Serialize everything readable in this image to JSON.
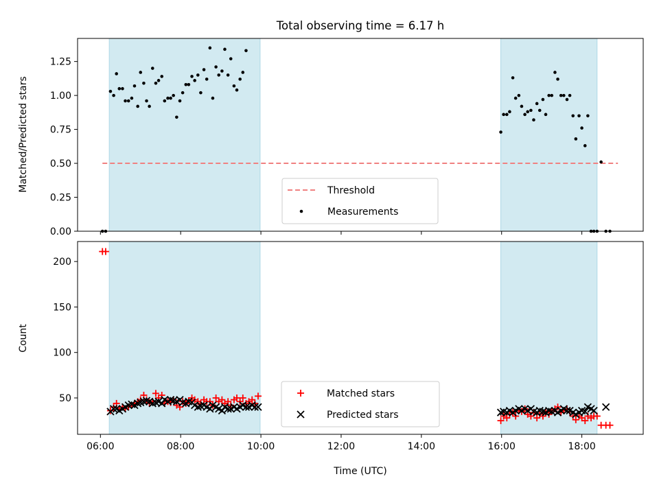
{
  "chart_data": [
    {
      "type": "scatter",
      "title": "Total observing time = 6.17 h",
      "xlabel": "",
      "ylabel": "Matched/Predicted stars",
      "xlim": [
        5.43,
        19.53
      ],
      "ylim": [
        0.0,
        1.42
      ],
      "yticks": [
        0.0,
        0.25,
        0.5,
        0.75,
        1.0,
        1.25
      ],
      "ytick_labels": [
        "0.00",
        "0.25",
        "0.50",
        "0.75",
        "1.00",
        "1.25"
      ],
      "x_unit": "hours (UTC)",
      "shaded_intervals": [
        [
          6.22,
          9.98
        ],
        [
          15.98,
          18.38
        ]
      ],
      "threshold": {
        "name": "Threshold",
        "y": 0.5,
        "x_range": [
          6.05,
          18.9
        ],
        "color": "#f08080"
      },
      "series": [
        {
          "name": "Measurements",
          "color": "#000000",
          "points": [
            [
              6.05,
              0.0
            ],
            [
              6.13,
              0.0
            ],
            [
              6.25,
              1.03
            ],
            [
              6.33,
              1.0
            ],
            [
              6.4,
              1.16
            ],
            [
              6.47,
              1.05
            ],
            [
              6.55,
              1.05
            ],
            [
              6.62,
              0.96
            ],
            [
              6.7,
              0.96
            ],
            [
              6.78,
              0.98
            ],
            [
              6.85,
              1.07
            ],
            [
              6.93,
              0.92
            ],
            [
              7.0,
              1.17
            ],
            [
              7.08,
              1.09
            ],
            [
              7.15,
              0.96
            ],
            [
              7.22,
              0.92
            ],
            [
              7.3,
              1.2
            ],
            [
              7.38,
              1.09
            ],
            [
              7.45,
              1.11
            ],
            [
              7.53,
              1.14
            ],
            [
              7.6,
              0.96
            ],
            [
              7.68,
              0.98
            ],
            [
              7.75,
              0.98
            ],
            [
              7.82,
              1.0
            ],
            [
              7.9,
              0.84
            ],
            [
              7.98,
              0.96
            ],
            [
              8.05,
              1.02
            ],
            [
              8.13,
              1.08
            ],
            [
              8.2,
              1.08
            ],
            [
              8.28,
              1.14
            ],
            [
              8.35,
              1.11
            ],
            [
              8.43,
              1.15
            ],
            [
              8.5,
              1.02
            ],
            [
              8.58,
              1.19
            ],
            [
              8.65,
              1.12
            ],
            [
              8.73,
              1.35
            ],
            [
              8.8,
              0.98
            ],
            [
              8.88,
              1.21
            ],
            [
              8.95,
              1.15
            ],
            [
              9.03,
              1.18
            ],
            [
              9.1,
              1.34
            ],
            [
              9.18,
              1.15
            ],
            [
              9.25,
              1.27
            ],
            [
              9.33,
              1.07
            ],
            [
              9.4,
              1.04
            ],
            [
              9.48,
              1.12
            ],
            [
              9.55,
              1.17
            ],
            [
              9.63,
              1.33
            ],
            [
              15.98,
              0.73
            ],
            [
              16.05,
              0.86
            ],
            [
              16.13,
              0.86
            ],
            [
              16.2,
              0.88
            ],
            [
              16.28,
              1.13
            ],
            [
              16.35,
              0.98
            ],
            [
              16.43,
              1.0
            ],
            [
              16.5,
              0.92
            ],
            [
              16.58,
              0.86
            ],
            [
              16.65,
              0.88
            ],
            [
              16.73,
              0.89
            ],
            [
              16.8,
              0.82
            ],
            [
              16.88,
              0.94
            ],
            [
              16.95,
              0.89
            ],
            [
              17.03,
              0.97
            ],
            [
              17.1,
              0.86
            ],
            [
              17.18,
              1.0
            ],
            [
              17.25,
              1.0
            ],
            [
              17.33,
              1.17
            ],
            [
              17.4,
              1.12
            ],
            [
              17.48,
              1.0
            ],
            [
              17.55,
              1.0
            ],
            [
              17.63,
              0.97
            ],
            [
              17.7,
              1.0
            ],
            [
              17.78,
              0.85
            ],
            [
              17.85,
              0.68
            ],
            [
              17.93,
              0.85
            ],
            [
              18.0,
              0.76
            ],
            [
              18.08,
              0.63
            ],
            [
              18.15,
              0.85
            ],
            [
              18.23,
              0.0
            ],
            [
              18.3,
              0.0
            ],
            [
              18.38,
              0.0
            ],
            [
              18.48,
              0.51
            ],
            [
              18.6,
              0.0
            ],
            [
              18.7,
              0.0
            ]
          ]
        }
      ],
      "legend": {
        "placement": "lower-center",
        "entries": [
          "Threshold",
          "Measurements"
        ]
      }
    },
    {
      "type": "scatter",
      "title": "",
      "xlabel": "Time (UTC)",
      "ylabel": "Count",
      "xlim": [
        5.43,
        19.53
      ],
      "ylim": [
        10,
        222
      ],
      "yticks": [
        50,
        100,
        150,
        200
      ],
      "ytick_labels": [
        "50",
        "100",
        "150",
        "200"
      ],
      "xticks": [
        6,
        8,
        10,
        12,
        14,
        16,
        18
      ],
      "xtick_labels": [
        "06:00",
        "08:00",
        "10:00",
        "12:00",
        "14:00",
        "16:00",
        "18:00"
      ],
      "shaded_intervals": [
        [
          6.22,
          9.98
        ],
        [
          15.98,
          18.38
        ]
      ],
      "series": [
        {
          "name": "Matched stars",
          "marker": "+",
          "color": "#ff0000",
          "points": [
            [
              6.05,
              211
            ],
            [
              6.13,
              211
            ],
            [
              6.25,
              36
            ],
            [
              6.33,
              40
            ],
            [
              6.4,
              44
            ],
            [
              6.47,
              38
            ],
            [
              6.55,
              40
            ],
            [
              6.62,
              38
            ],
            [
              6.7,
              40
            ],
            [
              6.78,
              42
            ],
            [
              6.85,
              44
            ],
            [
              6.93,
              46
            ],
            [
              7.0,
              48
            ],
            [
              7.08,
              53
            ],
            [
              7.15,
              48
            ],
            [
              7.22,
              44
            ],
            [
              7.3,
              46
            ],
            [
              7.38,
              55
            ],
            [
              7.45,
              50
            ],
            [
              7.53,
              53
            ],
            [
              7.6,
              44
            ],
            [
              7.68,
              46
            ],
            [
              7.75,
              45
            ],
            [
              7.82,
              48
            ],
            [
              7.9,
              42
            ],
            [
              7.98,
              40
            ],
            [
              8.05,
              46
            ],
            [
              8.13,
              44
            ],
            [
              8.2,
              47
            ],
            [
              8.28,
              50
            ],
            [
              8.35,
              48
            ],
            [
              8.43,
              46
            ],
            [
              8.5,
              44
            ],
            [
              8.58,
              48
            ],
            [
              8.65,
              46
            ],
            [
              8.73,
              46
            ],
            [
              8.8,
              42
            ],
            [
              8.88,
              50
            ],
            [
              8.95,
              46
            ],
            [
              9.03,
              48
            ],
            [
              9.1,
              44
            ],
            [
              9.18,
              46
            ],
            [
              9.25,
              42
            ],
            [
              9.33,
              48
            ],
            [
              9.4,
              50
            ],
            [
              9.48,
              46
            ],
            [
              9.55,
              50
            ],
            [
              9.63,
              44
            ],
            [
              9.7,
              46
            ],
            [
              9.78,
              48
            ],
            [
              9.85,
              44
            ],
            [
              9.93,
              52
            ],
            [
              15.98,
              25
            ],
            [
              16.05,
              30
            ],
            [
              16.13,
              28
            ],
            [
              16.2,
              32
            ],
            [
              16.28,
              34
            ],
            [
              16.35,
              30
            ],
            [
              16.43,
              36
            ],
            [
              16.5,
              35
            ],
            [
              16.58,
              38
            ],
            [
              16.65,
              32
            ],
            [
              16.73,
              30
            ],
            [
              16.8,
              34
            ],
            [
              16.88,
              28
            ],
            [
              16.95,
              32
            ],
            [
              17.03,
              30
            ],
            [
              17.1,
              34
            ],
            [
              17.18,
              32
            ],
            [
              17.25,
              36
            ],
            [
              17.33,
              38
            ],
            [
              17.4,
              40
            ],
            [
              17.48,
              34
            ],
            [
              17.55,
              36
            ],
            [
              17.63,
              38
            ],
            [
              17.7,
              35
            ],
            [
              17.78,
              30
            ],
            [
              17.85,
              26
            ],
            [
              17.93,
              30
            ],
            [
              18.0,
              28
            ],
            [
              18.08,
              25
            ],
            [
              18.15,
              30
            ],
            [
              18.23,
              28
            ],
            [
              18.3,
              30
            ],
            [
              18.38,
              30
            ],
            [
              18.48,
              20
            ],
            [
              18.6,
              20
            ],
            [
              18.7,
              20
            ]
          ]
        },
        {
          "name": "Predicted stars",
          "marker": "x",
          "color": "#000000",
          "points": [
            [
              6.25,
              35
            ],
            [
              6.33,
              38
            ],
            [
              6.4,
              38
            ],
            [
              6.47,
              36
            ],
            [
              6.55,
              38
            ],
            [
              6.62,
              40
            ],
            [
              6.7,
              42
            ],
            [
              6.78,
              43
            ],
            [
              6.85,
              42
            ],
            [
              6.93,
              44
            ],
            [
              7.0,
              45
            ],
            [
              7.08,
              46
            ],
            [
              7.15,
              47
            ],
            [
              7.22,
              46
            ],
            [
              7.3,
              44
            ],
            [
              7.38,
              45
            ],
            [
              7.45,
              46
            ],
            [
              7.53,
              44
            ],
            [
              7.6,
              48
            ],
            [
              7.68,
              46
            ],
            [
              7.75,
              48
            ],
            [
              7.82,
              47
            ],
            [
              7.9,
              46
            ],
            [
              7.98,
              48
            ],
            [
              8.05,
              45
            ],
            [
              8.13,
              44
            ],
            [
              8.2,
              46
            ],
            [
              8.28,
              45
            ],
            [
              8.35,
              42
            ],
            [
              8.43,
              40
            ],
            [
              8.5,
              41
            ],
            [
              8.58,
              42
            ],
            [
              8.65,
              40
            ],
            [
              8.73,
              38
            ],
            [
              8.8,
              42
            ],
            [
              8.88,
              40
            ],
            [
              8.95,
              38
            ],
            [
              9.03,
              36
            ],
            [
              9.1,
              40
            ],
            [
              9.18,
              38
            ],
            [
              9.25,
              38
            ],
            [
              9.33,
              40
            ],
            [
              9.4,
              38
            ],
            [
              9.48,
              40
            ],
            [
              9.55,
              42
            ],
            [
              9.63,
              40
            ],
            [
              9.7,
              40
            ],
            [
              9.78,
              42
            ],
            [
              9.85,
              40
            ],
            [
              9.93,
              40
            ],
            [
              15.98,
              34
            ],
            [
              16.05,
              35
            ],
            [
              16.13,
              34
            ],
            [
              16.2,
              36
            ],
            [
              16.28,
              34
            ],
            [
              16.35,
              36
            ],
            [
              16.43,
              38
            ],
            [
              16.5,
              36
            ],
            [
              16.58,
              38
            ],
            [
              16.65,
              36
            ],
            [
              16.73,
              38
            ],
            [
              16.8,
              35
            ],
            [
              16.88,
              34
            ],
            [
              16.95,
              36
            ],
            [
              17.03,
              35
            ],
            [
              17.1,
              34
            ],
            [
              17.18,
              36
            ],
            [
              17.25,
              35
            ],
            [
              17.33,
              36
            ],
            [
              17.4,
              34
            ],
            [
              17.48,
              36
            ],
            [
              17.55,
              38
            ],
            [
              17.63,
              36
            ],
            [
              17.7,
              36
            ],
            [
              17.78,
              34
            ],
            [
              17.85,
              32
            ],
            [
              17.93,
              34
            ],
            [
              18.0,
              36
            ],
            [
              18.08,
              35
            ],
            [
              18.15,
              40
            ],
            [
              18.23,
              38
            ],
            [
              18.3,
              36
            ],
            [
              18.6,
              40
            ]
          ]
        }
      ],
      "legend": {
        "placement": "lower-center",
        "entries": [
          "Matched stars",
          "Predicted stars"
        ]
      }
    }
  ],
  "colors": {
    "shade": "#add8e6",
    "threshold": "#f08080",
    "matched": "#ff0000",
    "predicted": "#000000"
  }
}
